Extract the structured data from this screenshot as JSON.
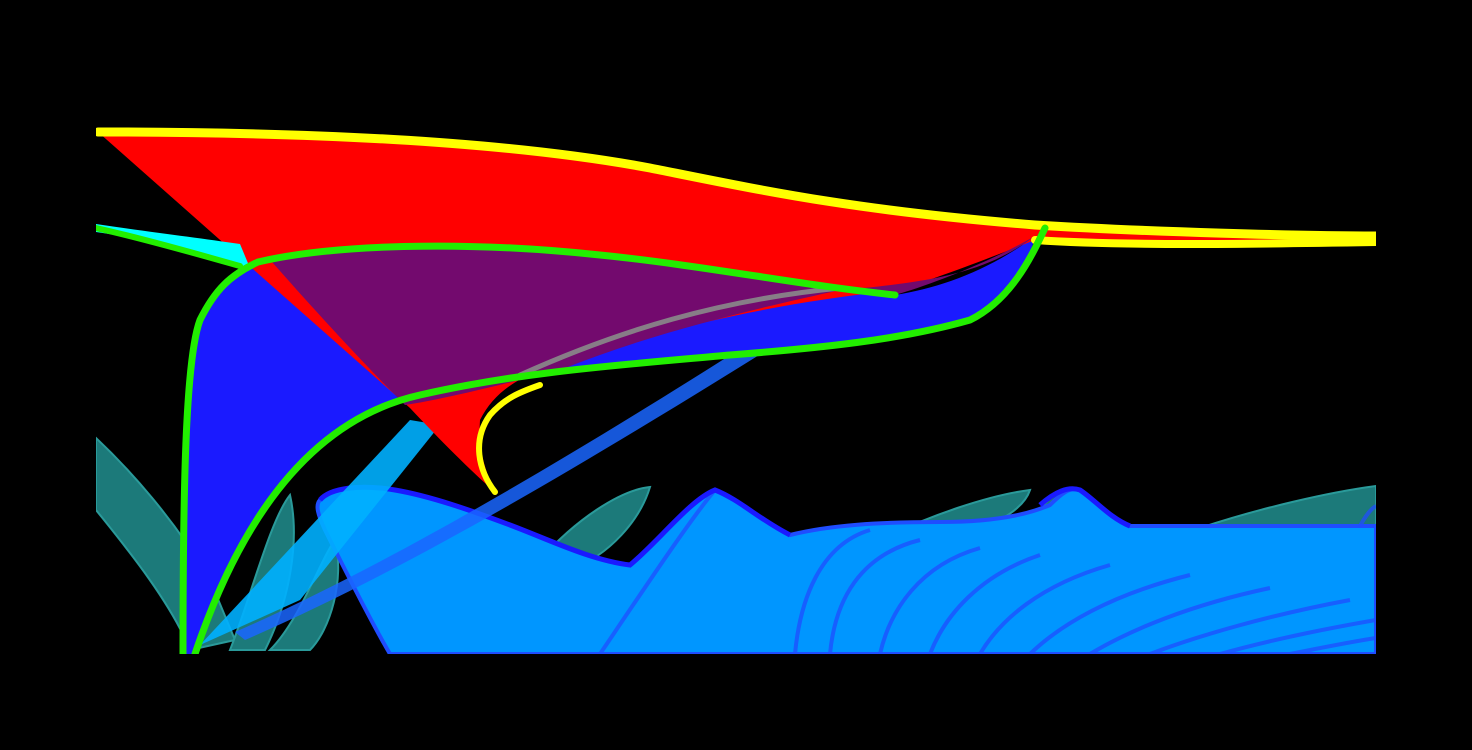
{
  "scene": {
    "background": "#000000",
    "palette": {
      "red": "#ff0000",
      "yellow": "#ffff00",
      "green": "#22ee00",
      "cyan": "#00ffff",
      "blue": "#1a1aff",
      "purple": "#730a6e",
      "sky_blue": "#0096ff",
      "light_blue": "#00b0ff",
      "teal": "#1c7a7a",
      "gray": "#8a8a8a",
      "royal_blue": "#1f4dff"
    }
  }
}
